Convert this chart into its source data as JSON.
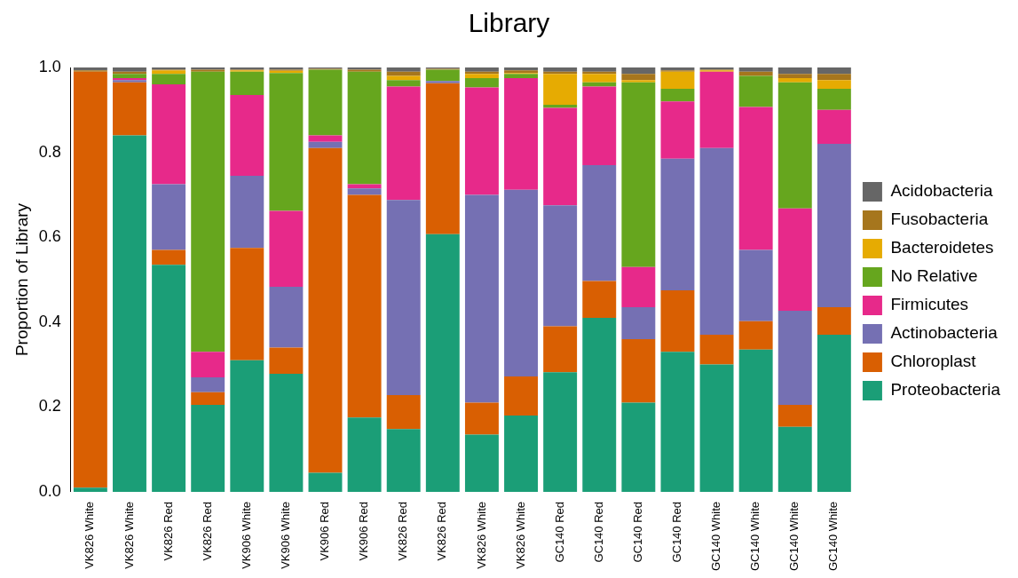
{
  "chart_data": {
    "type": "bar",
    "title": "Library",
    "ylabel": "Proportion of Library",
    "stacked": true,
    "legend": "right",
    "grid": false,
    "categories": [
      "VK826 White",
      "VK826 White",
      "VK826 Red",
      "VK826 Red",
      "VK906 White",
      "VK906 White",
      "VK906 Red",
      "VK906 Red",
      "VK826 Red",
      "VK826 Red",
      "VK826 White",
      "VK826 White",
      "GC140 Red",
      "GC140 Red",
      "GC140 Red",
      "GC140 Red",
      "GC140 White",
      "GC140 White",
      "GC140 White",
      "GC140 White"
    ],
    "ylim": [
      0,
      1
    ],
    "yticks": [
      {
        "value": 0,
        "label": "0.0"
      },
      {
        "value": 0.2,
        "label": "0.2"
      },
      {
        "value": 0.4,
        "label": "0.4"
      },
      {
        "value": 0.6,
        "label": "0.6"
      },
      {
        "value": 0.8,
        "label": "0.8"
      },
      {
        "value": 1,
        "label": "1.0"
      }
    ],
    "series": [
      {
        "name": "Proteobacteria",
        "color": "#1b9e77",
        "values": [
          0.01,
          0.84,
          0.535,
          0.205,
          0.31,
          0.278,
          0.045,
          0.175,
          0.148,
          0.607,
          0.135,
          0.18,
          0.282,
          0.41,
          0.21,
          0.33,
          0.3,
          0.335,
          0.153,
          0.37
        ]
      },
      {
        "name": "Chloroplast",
        "color": "#d95f02",
        "values": [
          0.98,
          0.125,
          0.035,
          0.03,
          0.265,
          0.062,
          0.765,
          0.525,
          0.08,
          0.356,
          0.075,
          0.092,
          0.108,
          0.087,
          0.15,
          0.145,
          0.07,
          0.067,
          0.052,
          0.065
        ]
      },
      {
        "name": "Actinobacteria",
        "color": "#7570b3",
        "values": [
          0,
          0.005,
          0.155,
          0.035,
          0.17,
          0.143,
          0.015,
          0.015,
          0.46,
          0.005,
          0.49,
          0.44,
          0.285,
          0.273,
          0.075,
          0.31,
          0.44,
          0.168,
          0.222,
          0.385
        ]
      },
      {
        "name": "Firmicutes",
        "color": "#e7298a",
        "values": [
          0,
          0.005,
          0.235,
          0.06,
          0.19,
          0.179,
          0.015,
          0.01,
          0.267,
          0,
          0.253,
          0.263,
          0.23,
          0.185,
          0.095,
          0.135,
          0.18,
          0.337,
          0.241,
          0.08
        ]
      },
      {
        "name": "No Relative",
        "color": "#66a61e",
        "values": [
          0,
          0.01,
          0.025,
          0.66,
          0.055,
          0.325,
          0.155,
          0.265,
          0.015,
          0.027,
          0.022,
          0.01,
          0.007,
          0.01,
          0.435,
          0.03,
          0,
          0.073,
          0.297,
          0.05
        ]
      },
      {
        "name": "Bacteroidetes",
        "color": "#e6ab02",
        "values": [
          0,
          0,
          0.008,
          0,
          0.003,
          0.005,
          0,
          0,
          0.01,
          0,
          0.01,
          0.002,
          0.073,
          0.02,
          0.005,
          0.04,
          0.003,
          0,
          0.01,
          0.02
        ]
      },
      {
        "name": "Fusobacteria",
        "color": "#a6761d",
        "values": [
          0.003,
          0.005,
          0.002,
          0.005,
          0.002,
          0.003,
          0.002,
          0.005,
          0.01,
          0.002,
          0.005,
          0.006,
          0.005,
          0.005,
          0.015,
          0.003,
          0.002,
          0.01,
          0.01,
          0.015
        ]
      },
      {
        "name": "Acidobacteria",
        "color": "#666666",
        "values": [
          0.007,
          0.01,
          0.005,
          0.005,
          0.005,
          0.005,
          0.003,
          0.005,
          0.01,
          0.003,
          0.01,
          0.007,
          0.01,
          0.01,
          0.015,
          0.007,
          0.005,
          0.01,
          0.015,
          0.015
        ]
      }
    ]
  }
}
